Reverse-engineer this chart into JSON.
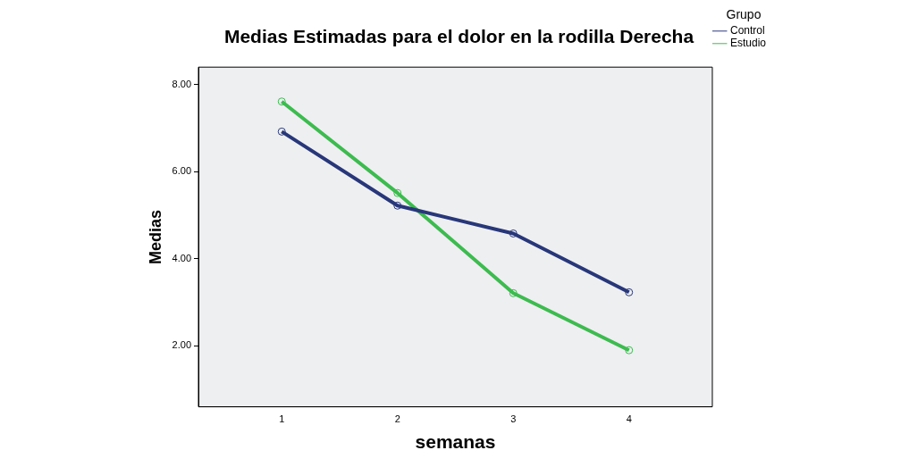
{
  "chart_data": {
    "type": "line",
    "title": "Medias Estimadas para el dolor en la rodilla Derecha",
    "xlabel": "semanas",
    "ylabel": "Medias",
    "legend_title": "Grupo",
    "x": [
      1,
      2,
      3,
      4
    ],
    "series": [
      {
        "name": "Control",
        "color": "#283779",
        "values": [
          6.92,
          5.22,
          4.58,
          3.23
        ]
      },
      {
        "name": "Estudio",
        "color": "#3dbb4f",
        "values": [
          7.61,
          5.51,
          3.21,
          1.9
        ]
      }
    ],
    "xlim": [
      0.28,
      4.72
    ],
    "xticks": [
      1,
      2,
      3,
      4
    ],
    "ylim": [
      0.6,
      8.4
    ],
    "yticks": [
      {
        "value": 2,
        "label": "2.00"
      },
      {
        "value": 4,
        "label": "4.00"
      },
      {
        "value": 6,
        "label": "6.00"
      },
      {
        "value": 8,
        "label": "8.00"
      }
    ],
    "grid": false,
    "legend": "top right",
    "marker": "circle",
    "line_style": "solid"
  }
}
